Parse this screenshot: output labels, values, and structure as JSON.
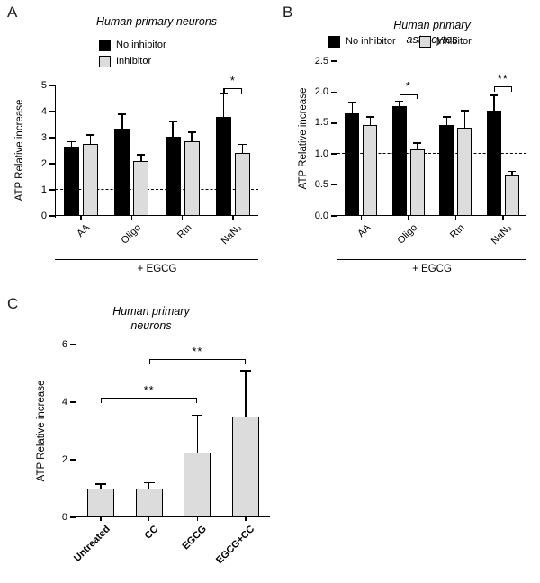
{
  "colors": {
    "no_inhibitor": "#000000",
    "inhibitor": "#dcdcdc",
    "axis": "#000000"
  },
  "chart_data": [
    {
      "panel": "A",
      "type": "bar",
      "title": "Human primary neurons",
      "ylabel": "ATP Relative increase",
      "ylim": [
        0,
        5
      ],
      "yticks": [
        "0",
        "1",
        "2",
        "3",
        "4",
        "5"
      ],
      "ytick_values": [
        0,
        1,
        2,
        3,
        4,
        5
      ],
      "dashed_line_y": 1,
      "categories": [
        "AA",
        "Oligo",
        "Rtn",
        "NaN₃"
      ],
      "group_label": "+ EGCG",
      "legend_position": "upper-left-stacked",
      "series": [
        {
          "name": "No inhibitor",
          "color": "#000000",
          "values": [
            2.65,
            3.35,
            3.05,
            3.8
          ],
          "errors": [
            0.2,
            0.55,
            0.55,
            0.9
          ]
        },
        {
          "name": "Inhibitor",
          "color": "#dcdcdc",
          "values": [
            2.75,
            2.1,
            2.85,
            2.4
          ],
          "errors": [
            0.35,
            0.25,
            0.35,
            0.35
          ]
        }
      ],
      "significance": [
        {
          "kind": "pair",
          "category_index": 3,
          "label": "*",
          "y": 4.9
        }
      ]
    },
    {
      "panel": "B",
      "type": "bar",
      "title": "Human primary astrocytes",
      "ylabel": "ATP Relative increase",
      "ylim": [
        0,
        2.5
      ],
      "yticks": [
        "0.0",
        "0.5",
        "1.0",
        "1.5",
        "2.0",
        "2.5"
      ],
      "ytick_values": [
        0,
        0.5,
        1,
        1.5,
        2,
        2.5
      ],
      "dashed_line_y": 1,
      "categories": [
        "AA",
        "Oligo",
        "Rtn",
        "NaN₃"
      ],
      "group_label": "+ EGCG",
      "legend_position": "top-row",
      "series": [
        {
          "name": "No inhibitor",
          "color": "#000000",
          "values": [
            1.65,
            1.77,
            1.47,
            1.7
          ],
          "errors": [
            0.18,
            0.08,
            0.13,
            0.25
          ]
        },
        {
          "name": "Inhibitor",
          "color": "#dcdcdc",
          "values": [
            1.47,
            1.08,
            1.43,
            0.65
          ],
          "errors": [
            0.13,
            0.1,
            0.27,
            0.07
          ]
        }
      ],
      "significance": [
        {
          "kind": "pair",
          "category_index": 1,
          "label": "*",
          "y": 1.97
        },
        {
          "kind": "pair",
          "category_index": 3,
          "label": "**",
          "y": 2.1
        }
      ]
    },
    {
      "panel": "C",
      "type": "bar",
      "title": "Human primary\nneurons",
      "ylabel": "ATP Relative increase",
      "ylim": [
        0,
        6
      ],
      "yticks": [
        "0",
        "2",
        "4",
        "6"
      ],
      "ytick_values": [
        0,
        2,
        4,
        6
      ],
      "dashed_line_y": null,
      "categories": [
        "Untreated",
        "CC",
        "EGCG",
        "EGCG+CC"
      ],
      "group_label": null,
      "legend_position": null,
      "series": [
        {
          "name": "",
          "color": "#dcdcdc",
          "values": [
            1.0,
            1.0,
            2.25,
            3.5
          ],
          "errors": [
            0.15,
            0.2,
            1.3,
            1.6
          ]
        }
      ],
      "significance": [
        {
          "kind": "span",
          "from": 0,
          "to": 2,
          "label": "**",
          "y": 4.15
        },
        {
          "kind": "span",
          "from": 1,
          "to": 3,
          "label": "**",
          "y": 5.5
        }
      ]
    }
  ]
}
